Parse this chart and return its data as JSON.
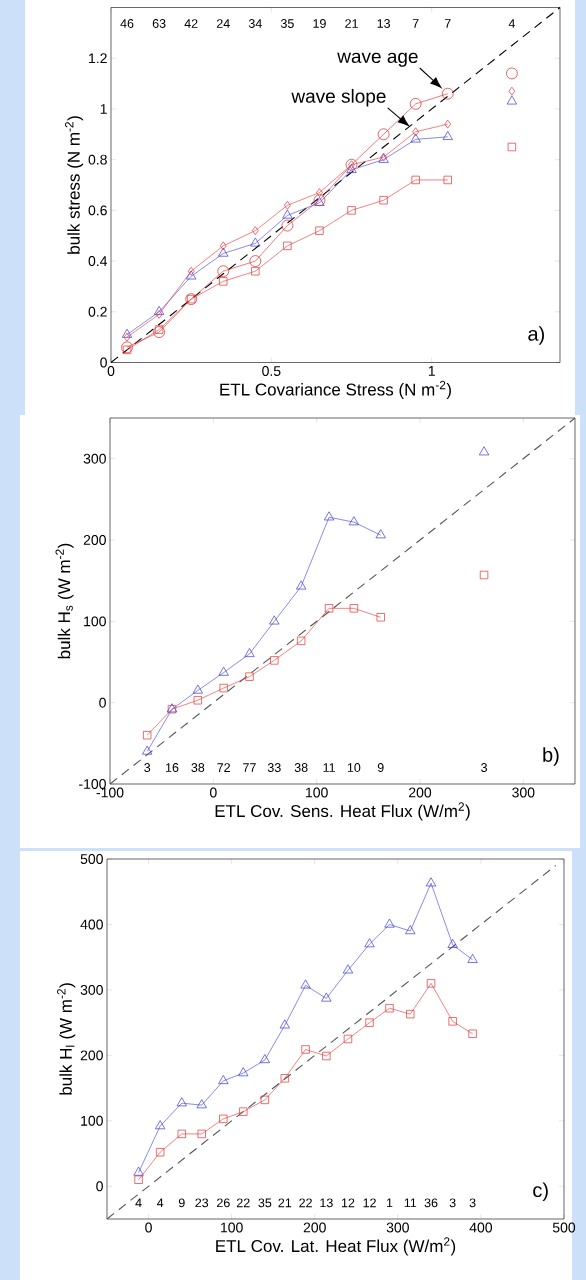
{
  "chart_data": [
    {
      "type": "line",
      "xlabel": "ETL Covariance Stress (N m$^{-2}$)",
      "ylabel": "bulk stress (N m$^{-2}$)",
      "xlim": [
        0,
        1.4
      ],
      "ylim": [
        0,
        1.4
      ],
      "xticks": [
        0,
        0.5,
        1
      ],
      "yticks": [
        0,
        0.2,
        0.4,
        0.6,
        0.8,
        1,
        1.2
      ],
      "x": [
        0.05,
        0.15,
        0.25,
        0.35,
        0.45,
        0.55,
        0.65,
        0.75,
        0.85,
        0.95,
        1.05
      ],
      "series": [
        {
          "type": "line",
          "color": "#000000",
          "line_style": "dashed",
          "marker": "none",
          "x": [
            0,
            1.4
          ],
          "values": [
            0,
            1.4
          ]
        },
        {
          "color": "#e83030",
          "marker": "square",
          "values": [
            0.05,
            0.13,
            0.25,
            0.32,
            0.36,
            0.46,
            0.52,
            0.6,
            0.64,
            0.72,
            0.72
          ]
        },
        {
          "color": "#3a3ae0",
          "marker": "triangle",
          "values": [
            0.11,
            0.2,
            0.34,
            0.43,
            0.47,
            0.58,
            0.63,
            0.76,
            0.8,
            0.88,
            0.89
          ]
        },
        {
          "color": "#e83030",
          "marker": "diamond",
          "values": [
            0.1,
            0.19,
            0.36,
            0.46,
            0.52,
            0.62,
            0.67,
            0.78,
            0.81,
            0.91,
            0.94
          ]
        },
        {
          "color": "#e82020",
          "marker": "circle",
          "values": [
            0.06,
            0.12,
            0.25,
            0.36,
            0.4,
            0.54,
            0.64,
            0.78,
            0.9,
            1.02,
            1.06
          ]
        },
        {
          "type": "scatter",
          "color": "#e83030",
          "marker": "square",
          "x": [
            1.25
          ],
          "values": [
            0.85
          ]
        },
        {
          "type": "scatter",
          "color": "#3a3ae0",
          "marker": "triangle",
          "x": [
            1.25
          ],
          "values": [
            1.03
          ]
        },
        {
          "type": "scatter",
          "color": "#e83030",
          "marker": "diamond",
          "x": [
            1.25
          ],
          "values": [
            1.07
          ]
        },
        {
          "type": "scatter",
          "color": "#e82020",
          "marker": "circle",
          "x": [
            1.25
          ],
          "values": [
            1.14
          ]
        }
      ],
      "annotations": [
        "a)",
        {
          "text": "wave age",
          "x": 1.05,
          "y": 1.06
        },
        {
          "text": "wave slope",
          "x": 0.95,
          "y": 0.91
        },
        "46",
        "63",
        "42",
        "24",
        "34",
        "35",
        "19",
        "21",
        "13",
        "7",
        "7",
        "4"
      ]
    },
    {
      "type": "line",
      "xlabel": "ETL Cov. Sens. Heat Flux (W/m$^{2}$)",
      "ylabel": "bulk H$_{s}$ (W m$^{-2}$)",
      "xlim": [
        -100,
        350
      ],
      "ylim": [
        -100,
        350
      ],
      "xticks": [
        -100,
        0,
        100,
        200,
        300
      ],
      "yticks": [
        -100,
        0,
        100,
        200,
        300
      ],
      "x": [
        -64,
        -40,
        -15,
        10,
        35,
        59,
        85,
        112,
        136,
        162
      ],
      "series": [
        {
          "type": "line",
          "color": "#555555",
          "line_style": "dashed",
          "marker": "none",
          "x": [
            -100,
            350
          ],
          "values": [
            -100,
            350
          ]
        },
        {
          "color": "#e83030",
          "marker": "square",
          "values": [
            -40,
            -8,
            3,
            18,
            32,
            52,
            76,
            116,
            116,
            105
          ]
        },
        {
          "color": "#3a3ae0",
          "marker": "triangle",
          "values": [
            -60,
            -8,
            15,
            37,
            60,
            100,
            143,
            228,
            222,
            206
          ]
        },
        {
          "type": "scatter",
          "color": "#e83030",
          "marker": "square",
          "x": [
            262
          ],
          "values": [
            157
          ]
        },
        {
          "type": "scatter",
          "color": "#3a3ae0",
          "marker": "triangle",
          "x": [
            262
          ],
          "values": [
            308
          ]
        }
      ],
      "annotations": [
        "b)",
        "3",
        "16",
        "38",
        "72",
        "77",
        "33",
        "38",
        "11",
        "10",
        "9",
        "3"
      ]
    },
    {
      "type": "line",
      "xlabel": "ETL Cov. Lat. Heat Flux (W/m$^{2}$)",
      "ylabel": "bulk H$_{l}$ (W m$^{-2}$)",
      "xlim": [
        -50,
        500
      ],
      "ylim": [
        -50,
        500
      ],
      "xticks": [
        0,
        100,
        200,
        300,
        400,
        500
      ],
      "yticks": [
        0,
        100,
        200,
        300,
        400,
        500
      ],
      "x": [
        -12,
        14,
        40,
        64,
        90,
        114,
        140,
        164,
        189,
        214,
        240,
        266,
        290,
        315,
        340,
        366,
        390
      ],
      "series": [
        {
          "type": "line",
          "color": "#555555",
          "line_style": "dashed",
          "marker": "none",
          "x": [
            -50,
            490
          ],
          "values": [
            -50,
            490
          ]
        },
        {
          "color": "#e83030",
          "marker": "square",
          "values": [
            10,
            52,
            80,
            80,
            103,
            114,
            132,
            165,
            209,
            199,
            225,
            250,
            272,
            263,
            310,
            252,
            233
          ]
        },
        {
          "color": "#3a3ae0",
          "marker": "triangle",
          "values": [
            21,
            92,
            127,
            124,
            161,
            173,
            193,
            246,
            307,
            287,
            330,
            370,
            400,
            390,
            463,
            369,
            346
          ]
        }
      ],
      "annotations": [
        "c)",
        "4",
        "4",
        "9",
        "23",
        "26",
        "22",
        "35",
        "21",
        "22",
        "13",
        "12",
        "12",
        "1",
        "11",
        "36",
        "3",
        "3"
      ]
    }
  ]
}
